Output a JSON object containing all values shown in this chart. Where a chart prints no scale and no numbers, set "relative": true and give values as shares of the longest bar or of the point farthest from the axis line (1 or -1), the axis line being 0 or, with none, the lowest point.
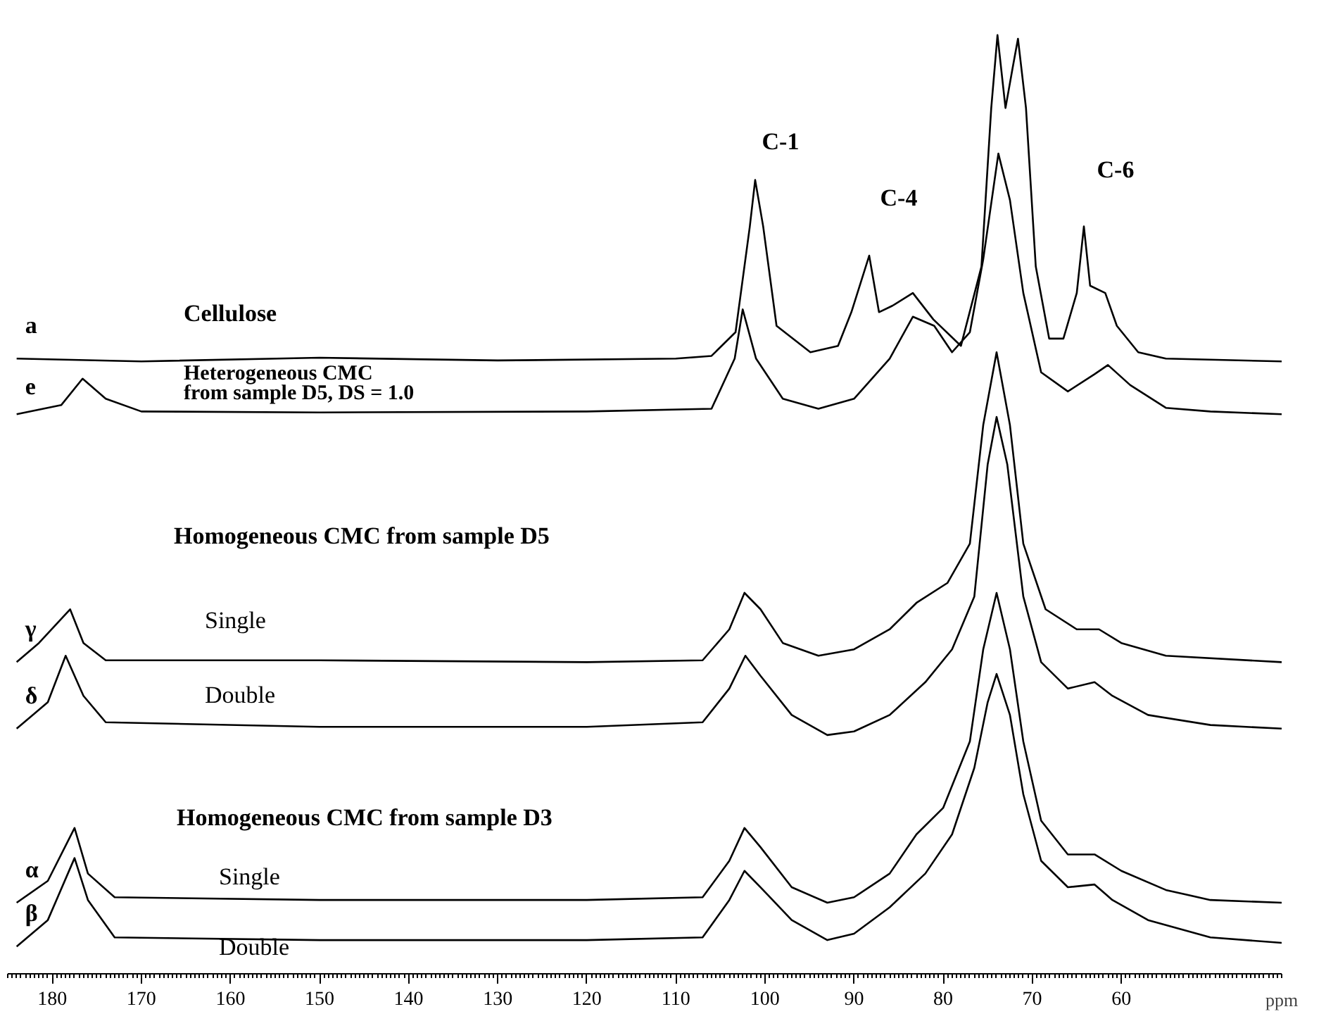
{
  "chart_data": {
    "type": "line",
    "relative": true,
    "xlabel": "ppm",
    "xlim": [
      185,
      42
    ],
    "xticks": [
      180,
      170,
      160,
      150,
      140,
      130,
      120,
      110,
      100,
      90,
      80,
      70,
      60
    ],
    "tick_labels": "x",
    "grid": false,
    "marker": "none",
    "line_style": "solid",
    "series": [
      {
        "name": "a",
        "color": "#000000",
        "x": [
          184,
          170,
          150,
          130,
          110,
          106,
          103.3,
          101.7,
          101.1,
          100.2,
          98.7,
          94.9,
          91.8,
          90.3,
          88.3,
          87.2,
          85.7,
          83.4,
          81.1,
          78.0,
          75.7,
          74.6,
          73.9,
          73.0,
          72.2,
          71.6,
          70.7,
          69.6,
          68.1,
          66.5,
          65.0,
          64.2,
          63.5,
          61.8,
          60.5,
          58.1,
          55.0,
          42
        ],
        "values": [
          0.645,
          0.642,
          0.646,
          0.643,
          0.645,
          0.648,
          0.674,
          0.79,
          0.841,
          0.79,
          0.681,
          0.652,
          0.659,
          0.696,
          0.758,
          0.696,
          0.703,
          0.717,
          0.688,
          0.659,
          0.746,
          0.92,
          1.0,
          0.92,
          0.964,
          0.996,
          0.92,
          0.746,
          0.667,
          0.667,
          0.717,
          0.79,
          0.725,
          0.717,
          0.681,
          0.652,
          0.645,
          0.642
        ]
      },
      {
        "name": "e",
        "color": "#000000",
        "x": [
          184,
          179,
          176.6,
          174,
          170,
          150,
          120,
          106,
          103.4,
          102.5,
          101,
          98,
          94,
          90,
          86,
          83.4,
          81,
          79,
          77,
          75.5,
          73.8,
          72.5,
          71,
          69,
          66,
          63,
          61.5,
          59,
          55,
          50,
          42
        ],
        "values": [
          0.584,
          0.594,
          0.623,
          0.601,
          0.587,
          0.586,
          0.587,
          0.59,
          0.645,
          0.699,
          0.645,
          0.601,
          0.59,
          0.601,
          0.645,
          0.691,
          0.681,
          0.652,
          0.674,
          0.754,
          0.87,
          0.819,
          0.717,
          0.63,
          0.609,
          0.628,
          0.638,
          0.616,
          0.591,
          0.587,
          0.584
        ]
      },
      {
        "name": "γ",
        "color": "#000000",
        "x": [
          184,
          181.5,
          178,
          176.5,
          174,
          150,
          120,
          107,
          104,
          102.3,
          100.5,
          98,
          94,
          90,
          86,
          83,
          79.5,
          77,
          75.5,
          74,
          72.5,
          71,
          68.5,
          65,
          62.5,
          60,
          55,
          42
        ],
        "values": [
          0.312,
          0.333,
          0.37,
          0.333,
          0.314,
          0.314,
          0.312,
          0.314,
          0.348,
          0.388,
          0.37,
          0.333,
          0.319,
          0.326,
          0.348,
          0.377,
          0.399,
          0.442,
          0.572,
          0.652,
          0.572,
          0.442,
          0.37,
          0.348,
          0.348,
          0.333,
          0.319,
          0.312
        ]
      },
      {
        "name": "δ",
        "color": "#000000",
        "x": [
          184,
          180.5,
          178.5,
          176.5,
          174,
          150,
          120,
          107,
          104,
          102.2,
          100.5,
          97,
          93,
          90,
          86,
          82,
          79,
          76.5,
          75,
          74,
          72.8,
          71,
          69,
          66,
          63,
          61,
          57,
          50,
          42
        ],
        "values": [
          0.239,
          0.268,
          0.319,
          0.275,
          0.246,
          0.241,
          0.241,
          0.246,
          0.283,
          0.319,
          0.297,
          0.254,
          0.232,
          0.236,
          0.254,
          0.29,
          0.326,
          0.384,
          0.529,
          0.581,
          0.529,
          0.384,
          0.312,
          0.283,
          0.29,
          0.275,
          0.254,
          0.243,
          0.239
        ]
      },
      {
        "name": "α",
        "color": "#000000",
        "x": [
          184,
          180.5,
          177.5,
          176,
          173,
          150,
          120,
          107,
          104,
          102.3,
          100.5,
          97,
          93,
          90,
          86,
          83,
          80,
          77,
          75.5,
          74,
          72.5,
          71,
          69,
          66,
          63,
          60,
          55,
          50,
          42
        ],
        "values": [
          0.048,
          0.072,
          0.13,
          0.08,
          0.054,
          0.051,
          0.051,
          0.054,
          0.094,
          0.13,
          0.109,
          0.065,
          0.048,
          0.054,
          0.08,
          0.123,
          0.152,
          0.225,
          0.326,
          0.388,
          0.326,
          0.225,
          0.138,
          0.101,
          0.101,
          0.083,
          0.062,
          0.051,
          0.048
        ]
      },
      {
        "name": "β",
        "color": "#000000",
        "x": [
          184,
          180.5,
          177.5,
          176,
          173,
          150,
          120,
          107,
          104,
          102.3,
          100.5,
          97,
          93,
          90,
          86,
          82,
          79,
          76.5,
          75,
          74,
          72.5,
          71,
          69,
          66,
          63,
          61,
          57,
          50,
          42
        ],
        "values": [
          0.0,
          0.029,
          0.097,
          0.051,
          0.01,
          0.007,
          0.007,
          0.01,
          0.051,
          0.083,
          0.065,
          0.029,
          0.007,
          0.014,
          0.043,
          0.08,
          0.123,
          0.196,
          0.268,
          0.299,
          0.254,
          0.167,
          0.094,
          0.065,
          0.068,
          0.051,
          0.029,
          0.01,
          0.004
        ]
      }
    ],
    "annotations": [
      "C-1",
      "C-4",
      "C-6",
      "Cellulose",
      "Heterogeneous CMC\nfrom sample D5, DS = 1.0",
      "Homogeneous CMC from sample D5",
      "Single",
      "Double",
      "Homogeneous CMC from sample D3",
      "Single",
      "Double"
    ]
  }
}
